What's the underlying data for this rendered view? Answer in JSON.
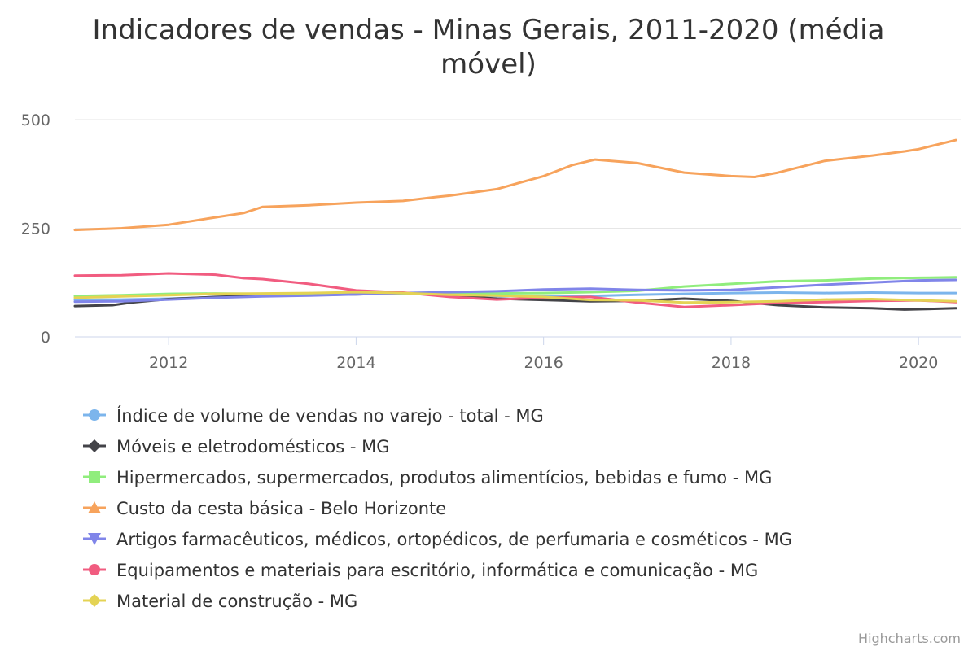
{
  "chart_data": {
    "type": "line",
    "title": "Indicadores de vendas - Minas Gerais, 2011-2020 (média móvel)",
    "title_lines": [
      "Indicadores de vendas - Minas Gerais, 2011-2020 (média",
      "móvel)"
    ],
    "xlabel": "",
    "ylabel": "",
    "xlim": [
      2011.0,
      2020.45
    ],
    "ylim": [
      0,
      500
    ],
    "x_ticks": [
      {
        "value": 2012,
        "label": "2012"
      },
      {
        "value": 2014,
        "label": "2014"
      },
      {
        "value": 2016,
        "label": "2016"
      },
      {
        "value": 2018,
        "label": "2018"
      },
      {
        "value": 2020,
        "label": "2020"
      }
    ],
    "y_ticks": [
      {
        "value": 0,
        "label": "0"
      },
      {
        "value": 250,
        "label": "250"
      },
      {
        "value": 500,
        "label": "500"
      }
    ],
    "grid": "horizontal",
    "legend_position": "bottom",
    "credits": "Highcharts.com",
    "series": [
      {
        "name": "Índice de volume de vendas no varejo - total - MG",
        "color": "#7cb5ec",
        "marker": "circle",
        "points": [
          [
            2011.0,
            85
          ],
          [
            2011.5,
            86
          ],
          [
            2012.0,
            88
          ],
          [
            2012.5,
            91
          ],
          [
            2013.0,
            94
          ],
          [
            2013.5,
            96
          ],
          [
            2014.0,
            99
          ],
          [
            2014.5,
            101
          ],
          [
            2015.0,
            97
          ],
          [
            2015.5,
            94
          ],
          [
            2016.0,
            93
          ],
          [
            2016.5,
            94
          ],
          [
            2017.0,
            97
          ],
          [
            2017.5,
            99
          ],
          [
            2018.0,
            101
          ],
          [
            2018.5,
            102
          ],
          [
            2019.0,
            101
          ],
          [
            2019.5,
            102
          ],
          [
            2020.0,
            101
          ],
          [
            2020.4,
            101
          ]
        ]
      },
      {
        "name": "Móveis e eletrodomésticos - MG",
        "color": "#434348",
        "marker": "diamond",
        "points": [
          [
            2011.0,
            71
          ],
          [
            2011.4,
            73
          ],
          [
            2011.6,
            79
          ],
          [
            2012.0,
            87
          ],
          [
            2012.5,
            92
          ],
          [
            2013.0,
            95
          ],
          [
            2013.5,
            96
          ],
          [
            2014.0,
            98
          ],
          [
            2014.5,
            101
          ],
          [
            2015.0,
            95
          ],
          [
            2015.5,
            88
          ],
          [
            2016.0,
            85
          ],
          [
            2016.5,
            82
          ],
          [
            2017.0,
            83
          ],
          [
            2017.5,
            88
          ],
          [
            2018.0,
            83
          ],
          [
            2018.5,
            73
          ],
          [
            2019.0,
            68
          ],
          [
            2019.5,
            66
          ],
          [
            2019.85,
            63
          ],
          [
            2020.4,
            66
          ]
        ]
      },
      {
        "name": "Hipermercados, supermercados, produtos alimentícios, bebidas e fumo - MG",
        "color": "#90ed7d",
        "marker": "square",
        "points": [
          [
            2011.0,
            94
          ],
          [
            2011.5,
            96
          ],
          [
            2012.0,
            99
          ],
          [
            2012.5,
            100
          ],
          [
            2013.0,
            99
          ],
          [
            2013.5,
            100
          ],
          [
            2014.0,
            101
          ],
          [
            2014.5,
            100
          ],
          [
            2015.0,
            99
          ],
          [
            2015.5,
            100
          ],
          [
            2016.0,
            101
          ],
          [
            2016.5,
            103
          ],
          [
            2017.0,
            106
          ],
          [
            2017.5,
            116
          ],
          [
            2018.0,
            122
          ],
          [
            2018.5,
            128
          ],
          [
            2019.0,
            130
          ],
          [
            2019.5,
            134
          ],
          [
            2020.0,
            136
          ],
          [
            2020.4,
            137
          ]
        ]
      },
      {
        "name": "Custo da cesta básica - Belo Horizonte",
        "color": "#f7a35c",
        "marker": "triangle",
        "points": [
          [
            2011.0,
            246
          ],
          [
            2011.5,
            250
          ],
          [
            2012.0,
            258
          ],
          [
            2012.5,
            275
          ],
          [
            2012.8,
            285
          ],
          [
            2013.0,
            299
          ],
          [
            2013.5,
            303
          ],
          [
            2013.75,
            306
          ],
          [
            2014.0,
            309
          ],
          [
            2014.5,
            313
          ],
          [
            2014.85,
            322
          ],
          [
            2015.0,
            325
          ],
          [
            2015.5,
            340
          ],
          [
            2016.0,
            370
          ],
          [
            2016.3,
            395
          ],
          [
            2016.55,
            408
          ],
          [
            2017.0,
            400
          ],
          [
            2017.5,
            378
          ],
          [
            2018.0,
            370
          ],
          [
            2018.25,
            368
          ],
          [
            2018.5,
            378
          ],
          [
            2019.0,
            405
          ],
          [
            2019.5,
            417
          ],
          [
            2019.85,
            427
          ],
          [
            2020.0,
            432
          ],
          [
            2020.4,
            453
          ]
        ]
      },
      {
        "name": "Artigos farmacêuticos, médicos, ortopédicos, de perfumaria e cosméticos - MG",
        "color": "#8085e9",
        "marker": "triangle-down",
        "points": [
          [
            2011.0,
            81
          ],
          [
            2011.5,
            82
          ],
          [
            2012.0,
            86
          ],
          [
            2012.5,
            90
          ],
          [
            2013.0,
            93
          ],
          [
            2013.5,
            95
          ],
          [
            2014.0,
            98
          ],
          [
            2014.5,
            101
          ],
          [
            2015.0,
            103
          ],
          [
            2015.5,
            105
          ],
          [
            2016.0,
            109
          ],
          [
            2016.5,
            111
          ],
          [
            2017.0,
            108
          ],
          [
            2017.5,
            107
          ],
          [
            2018.0,
            108
          ],
          [
            2018.5,
            114
          ],
          [
            2019.0,
            120
          ],
          [
            2019.5,
            125
          ],
          [
            2020.0,
            130
          ],
          [
            2020.4,
            131
          ]
        ]
      },
      {
        "name": "Equipamentos e materiais para escritório, informática e comunicação - MG",
        "color": "#f15c80",
        "marker": "circle",
        "points": [
          [
            2011.0,
            141
          ],
          [
            2011.5,
            142
          ],
          [
            2012.0,
            146
          ],
          [
            2012.5,
            143
          ],
          [
            2012.8,
            135
          ],
          [
            2013.0,
            133
          ],
          [
            2013.5,
            122
          ],
          [
            2014.0,
            107
          ],
          [
            2014.5,
            102
          ],
          [
            2015.0,
            92
          ],
          [
            2015.5,
            86
          ],
          [
            2016.0,
            90
          ],
          [
            2016.5,
            92
          ],
          [
            2017.0,
            79
          ],
          [
            2017.5,
            69
          ],
          [
            2018.0,
            73
          ],
          [
            2018.5,
            78
          ],
          [
            2019.0,
            80
          ],
          [
            2019.5,
            83
          ],
          [
            2020.0,
            84
          ],
          [
            2020.4,
            80
          ]
        ]
      },
      {
        "name": "Material de construção - MG",
        "color": "#e4d354",
        "marker": "diamond",
        "points": [
          [
            2011.0,
            90
          ],
          [
            2011.5,
            93
          ],
          [
            2012.0,
            96
          ],
          [
            2012.5,
            99
          ],
          [
            2013.0,
            100
          ],
          [
            2013.5,
            101
          ],
          [
            2014.0,
            103
          ],
          [
            2014.5,
            101
          ],
          [
            2015.0,
            97
          ],
          [
            2015.5,
            95
          ],
          [
            2016.0,
            92
          ],
          [
            2016.5,
            85
          ],
          [
            2017.0,
            84
          ],
          [
            2017.5,
            79
          ],
          [
            2018.0,
            80
          ],
          [
            2018.5,
            82
          ],
          [
            2019.0,
            86
          ],
          [
            2019.5,
            87
          ],
          [
            2020.0,
            84
          ],
          [
            2020.4,
            82
          ]
        ]
      }
    ]
  }
}
